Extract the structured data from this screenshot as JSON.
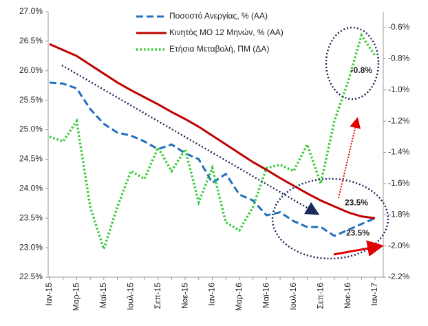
{
  "chart_data": {
    "type": "line",
    "categories": [
      "Ιαν-15",
      null,
      "Μαρ-15",
      null,
      "Μαϊ-15",
      null,
      "Ιουλ-15",
      null,
      "Σεπ-15",
      null,
      "Νοε-15",
      null,
      "Ιαν-16",
      null,
      "Μαρ-16",
      null,
      "Μαϊ-16",
      null,
      "Ιουλ-16",
      null,
      "Σεπ-16",
      null,
      "Νοε-16",
      null,
      "Ιαν-17"
    ],
    "series": [
      {
        "name": "Ποσοστό Ανεργίας, % (ΑΑ)",
        "color": "#1f6fbf",
        "dash": "dashed",
        "values": [
          25.8,
          25.78,
          25.7,
          25.35,
          25.1,
          24.95,
          24.9,
          24.8,
          24.67,
          24.75,
          24.6,
          24.5,
          24.1,
          24.25,
          23.9,
          23.8,
          23.55,
          23.6,
          23.45,
          23.35,
          23.35,
          23.2,
          23.3,
          23.4,
          23.5
        ],
        "value_labels": [
          null,
          null,
          null,
          null,
          null,
          null,
          null,
          null,
          null,
          null,
          null,
          null,
          null,
          null,
          null,
          null,
          null,
          null,
          null,
          null,
          null,
          null,
          null,
          null,
          "23.5%"
        ]
      },
      {
        "name": "Κινητός ΜΟ 12 Μηνών, % (ΑΑ)",
        "color": "#c00000",
        "dash": "solid",
        "values": [
          26.45,
          26.35,
          26.25,
          26.1,
          25.95,
          25.8,
          25.67,
          25.55,
          25.43,
          25.3,
          25.18,
          25.05,
          24.9,
          24.75,
          24.6,
          24.45,
          24.32,
          24.18,
          24.05,
          23.92,
          23.8,
          23.7,
          23.6,
          23.53,
          23.5
        ],
        "value_labels": [
          null,
          null,
          null,
          null,
          null,
          null,
          null,
          null,
          null,
          null,
          null,
          null,
          null,
          null,
          null,
          null,
          null,
          null,
          null,
          null,
          null,
          null,
          null,
          null,
          "23.5%"
        ]
      },
      {
        "name": "Ετήσια Μεταβολή, ΠΜ (ΔΑ)",
        "color": "#33cc33",
        "dash": "dotted",
        "axis": "y2",
        "values": [
          -1.3,
          -1.33,
          -1.2,
          -1.75,
          -2.02,
          -1.75,
          -1.52,
          -1.57,
          -1.37,
          -1.52,
          -1.38,
          -1.72,
          -1.5,
          -1.85,
          -1.9,
          -1.75,
          -1.5,
          -1.48,
          -1.52,
          -1.35,
          -1.6,
          -1.2,
          -0.95,
          -0.65,
          -0.78
        ],
        "value_labels": [
          null,
          null,
          null,
          null,
          null,
          null,
          null,
          null,
          null,
          null,
          null,
          null,
          null,
          null,
          null,
          null,
          null,
          null,
          null,
          null,
          null,
          null,
          null,
          null,
          "-0.8%"
        ]
      }
    ],
    "ylim": [
      22.5,
      27.0
    ],
    "yticks": [
      {
        "value": 22.5,
        "label": "22.5%"
      },
      {
        "value": 23.0,
        "label": "23.0%"
      },
      {
        "value": 23.5,
        "label": "23.5%"
      },
      {
        "value": 24.0,
        "label": "24.0%"
      },
      {
        "value": 24.5,
        "label": "24.5%"
      },
      {
        "value": 25.0,
        "label": "25.0%"
      },
      {
        "value": 25.5,
        "label": "25.5%"
      },
      {
        "value": 26.0,
        "label": "26.0%"
      },
      {
        "value": 26.5,
        "label": "26.5%"
      },
      {
        "value": 27.0,
        "label": "27.0%"
      }
    ],
    "y2lim": [
      -2.2,
      -0.6
    ],
    "y2ticks": [
      {
        "value": -2.2,
        "label": "-2.2%"
      },
      {
        "value": -2.0,
        "label": "-2.0%"
      },
      {
        "value": -1.8,
        "label": "-1.8%"
      },
      {
        "value": -1.6,
        "label": "-1.6%"
      },
      {
        "value": -1.4,
        "label": "-1.4%"
      },
      {
        "value": -1.2,
        "label": "-1.2%"
      },
      {
        "value": -1.0,
        "label": "-1.0%"
      },
      {
        "value": -0.8,
        "label": "-0.8%"
      },
      {
        "value": -0.6,
        "label": "-0.6%"
      }
    ],
    "legend": "top"
  }
}
